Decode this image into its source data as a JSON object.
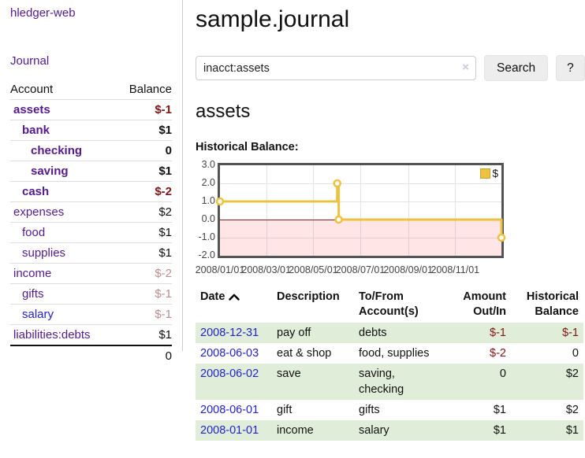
{
  "app": {
    "brand": "hledger-web"
  },
  "sidebar": {
    "journal_link": "Journal",
    "accounts_table": {
      "account_header": "Account",
      "balance_header": "Balance",
      "rows": [
        {
          "name": "assets",
          "balance": "$-1",
          "depth": 1,
          "in_view": true,
          "balance_tone": "negative-strong",
          "link_tone": "purple"
        },
        {
          "name": "bank",
          "balance": "$1",
          "depth": 2,
          "in_view": true,
          "balance_tone": "normal",
          "link_tone": "purple"
        },
        {
          "name": "checking",
          "balance": "0",
          "depth": 3,
          "in_view": true,
          "balance_tone": "normal",
          "link_tone": "purple"
        },
        {
          "name": "saving",
          "balance": "$1",
          "depth": 3,
          "in_view": true,
          "balance_tone": "normal",
          "link_tone": "purple"
        },
        {
          "name": "cash",
          "balance": "$-2",
          "depth": 2,
          "in_view": true,
          "balance_tone": "negative-strong",
          "link_tone": "purple"
        },
        {
          "name": "expenses",
          "balance": "$2",
          "depth": 1,
          "in_view": false,
          "balance_tone": "normal",
          "link_tone": "purple"
        },
        {
          "name": "food",
          "balance": "$1",
          "depth": 2,
          "in_view": false,
          "balance_tone": "normal",
          "link_tone": "purple"
        },
        {
          "name": "supplies",
          "balance": "$1",
          "depth": 2,
          "in_view": false,
          "balance_tone": "normal",
          "link_tone": "purple"
        },
        {
          "name": "income",
          "balance": "$-2",
          "depth": 1,
          "in_view": false,
          "balance_tone": "negative-faded",
          "link_tone": "purple"
        },
        {
          "name": "gifts",
          "balance": "$-1",
          "depth": 2,
          "in_view": false,
          "balance_tone": "negative-faded",
          "link_tone": "purple"
        },
        {
          "name": "salary",
          "balance": "$-1",
          "depth": 2,
          "in_view": false,
          "balance_tone": "negative-faded",
          "link_tone": "blue"
        },
        {
          "name": "liabilities:debts",
          "balance": "$1",
          "depth": 1,
          "in_view": false,
          "balance_tone": "normal",
          "link_tone": "purple"
        }
      ],
      "total": "0"
    }
  },
  "main": {
    "title": "sample.journal",
    "search": {
      "value": "inacct:assets",
      "clear_icon": "×",
      "search_button": "Search",
      "help_button": "?"
    },
    "account_heading": "assets",
    "chart_title": "Historical Balance:"
  },
  "chart_data": {
    "type": "line",
    "step": true,
    "title": "Historical Balance:",
    "x_range": [
      "2008-01-01",
      "2008-12-31"
    ],
    "ylim": [
      -2,
      3
    ],
    "y_ticks": [
      "3.0",
      "2.0",
      "1.0",
      "0.0",
      "-1.0",
      "-2.0"
    ],
    "y_tick_values": [
      3,
      2,
      1,
      0,
      -1,
      -2
    ],
    "x_ticks": [
      "2008/01/01",
      "2008/03/01",
      "2008/05/01",
      "2008/07/01",
      "2008/09/01",
      "2008/11/01"
    ],
    "series": [
      {
        "name": "$",
        "color": "#EDC240",
        "points": [
          [
            "2008-01-01",
            1
          ],
          [
            "2008-06-01",
            2
          ],
          [
            "2008-06-03",
            0
          ],
          [
            "2008-12-31",
            -1
          ]
        ]
      }
    ],
    "legend": {
      "label": "$",
      "swatch_color": "#EDC240",
      "position": "top-right"
    },
    "grid": true,
    "negative_region_color": "rgba(255,0,0,0.10)",
    "zero_line_color": "#8b2020",
    "border_color": "#545454"
  },
  "register": {
    "headers": {
      "date": "Date",
      "description": "Description",
      "accounts": "To/From Account(s)",
      "amount": "Amount Out/In",
      "balance": "Historical Balance"
    },
    "sort": {
      "column": "date",
      "direction": "ascending",
      "icon": "chevron-up-icon"
    },
    "rows": [
      {
        "date": "2008-12-31",
        "description": "pay off",
        "accounts": "debts",
        "amount": "$-1",
        "amount_negative": true,
        "balance": "$-1",
        "balance_negative": true
      },
      {
        "date": "2008-06-03",
        "description": "eat & shop",
        "accounts": "food, supplies",
        "amount": "$-2",
        "amount_negative": true,
        "balance": "0",
        "balance_negative": false
      },
      {
        "date": "2008-06-02",
        "description": "save",
        "accounts": "saving, checking",
        "amount": "0",
        "amount_negative": false,
        "balance": "$2",
        "balance_negative": false
      },
      {
        "date": "2008-06-01",
        "description": "gift",
        "accounts": "gifts",
        "amount": "$1",
        "amount_negative": false,
        "balance": "$2",
        "balance_negative": false
      },
      {
        "date": "2008-01-01",
        "description": "income",
        "accounts": "salary",
        "amount": "$1",
        "amount_negative": false,
        "balance": "$1",
        "balance_negative": false
      }
    ]
  },
  "colors": {
    "link_purple": "#551a8b",
    "link_blue": "#2222cc",
    "negative_strong": "#801515",
    "negative_faded": "#bb8f8f",
    "row_green": "#e0eed9",
    "series_gold": "#EDC240",
    "chart_border": "#545454"
  }
}
